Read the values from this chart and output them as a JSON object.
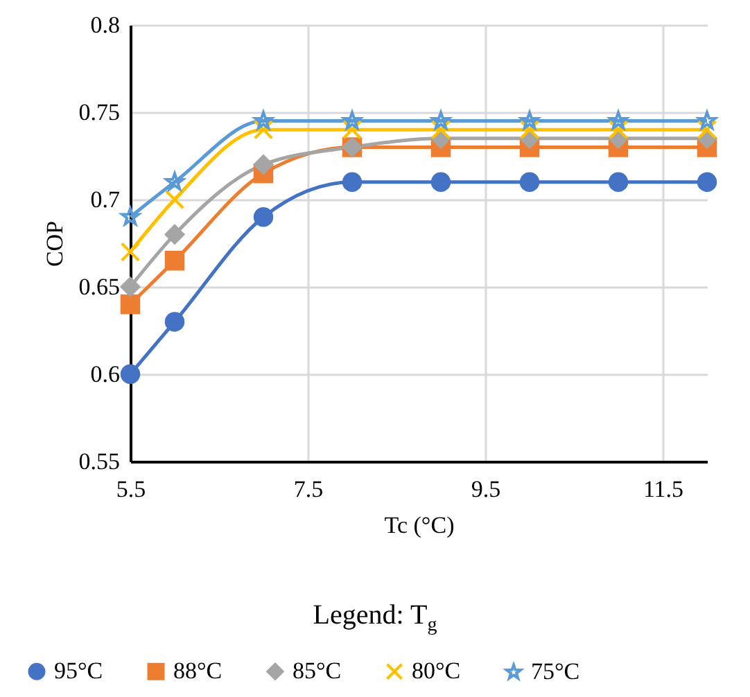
{
  "chart_data": {
    "type": "line",
    "xlabel": "Tc (°C)",
    "ylabel": "COP",
    "legend_title": "Legend: T$_{g}$",
    "legend": "bottom",
    "x": [
      5.5,
      6,
      7,
      8,
      9,
      10,
      11,
      12
    ],
    "series": [
      {
        "name": "95°C",
        "color": "#4472c4",
        "marker": "circle",
        "values": [
          0.6,
          0.63,
          0.69,
          0.71,
          0.71,
          0.71,
          0.71,
          0.71
        ]
      },
      {
        "name": "88°C",
        "color": "#ed7d31",
        "marker": "square",
        "values": [
          0.64,
          0.665,
          0.715,
          0.73,
          0.73,
          0.73,
          0.73,
          0.73
        ]
      },
      {
        "name": "85°C",
        "color": "#a5a5a5",
        "marker": "diamond",
        "values": [
          0.65,
          0.68,
          0.72,
          0.73,
          0.735,
          0.735,
          0.735,
          0.735
        ]
      },
      {
        "name": "80°C",
        "color": "#ffc000",
        "marker": "cross",
        "values": [
          0.67,
          0.7,
          0.74,
          0.74,
          0.74,
          0.74,
          0.74,
          0.74
        ]
      },
      {
        "name": "75°C",
        "color": "#5b9bd5",
        "marker": "star",
        "values": [
          0.69,
          0.71,
          0.745,
          0.745,
          0.745,
          0.745,
          0.745,
          0.745
        ]
      }
    ],
    "xlim": [
      5.5,
      12
    ],
    "xticks": [
      5.5,
      7.5,
      9.5,
      11.5
    ],
    "ylim": [
      0.55,
      0.8
    ],
    "yticks": [
      0.55,
      0.6,
      0.65,
      0.7,
      0.75,
      0.8
    ],
    "grid": true,
    "line_style": "solid"
  }
}
